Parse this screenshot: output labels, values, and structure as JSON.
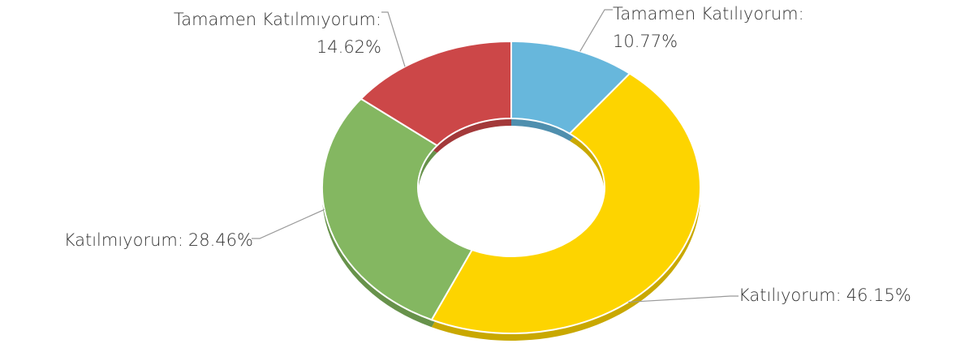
{
  "chart_data": {
    "type": "donut",
    "categories": [
      "Tamamen Katılıyorum:",
      "Katılıyorum:",
      "Katılmıyorum:",
      "Tamamen Katılmıyorum:"
    ],
    "values": [
      10.77,
      46.15,
      28.46,
      14.62
    ],
    "value_labels": [
      "10.77%",
      "46.15%",
      "28.46%",
      "14.62%"
    ],
    "colors": [
      "#67b7dc",
      "#fdd400",
      "#84b761",
      "#cc4748"
    ],
    "depth_colors": [
      "#4f8fae",
      "#c9a800",
      "#67924b",
      "#a3393a"
    ]
  }
}
